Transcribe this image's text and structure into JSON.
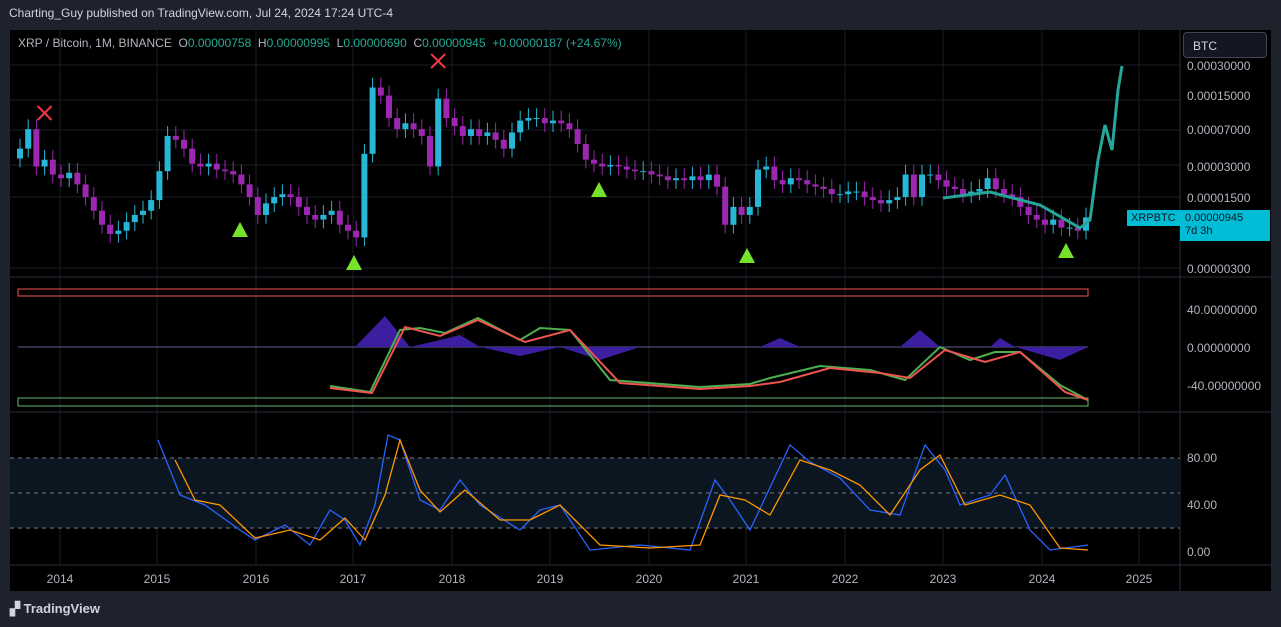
{
  "publisher_line": "Charting_Guy published on TradingView.com, Jul 24, 2024 17:24 UTC-4",
  "legend": {
    "symbol": "XRP / Bitcoin, 1M, BINANCE",
    "o_label": "O",
    "open": "0.00000758",
    "h_label": "H",
    "high": "0.00000995",
    "l_label": "L",
    "low": "0.00000690",
    "c_label": "C",
    "close": "0.00000945",
    "change": "+0.00000187 (+24.67%)"
  },
  "currency_button": "BTC",
  "price_axis": [
    "0.00030000",
    "0.00015000",
    "0.00007000",
    "0.00003000",
    "0.00001500",
    "0.00000300"
  ],
  "price_label": {
    "symbol": "XRPBTC",
    "value": "0.00000945",
    "countdown": "7d 3h"
  },
  "osc_axis": [
    "40.00000000",
    "0.00000000",
    "-40.00000000"
  ],
  "rsi_axis": [
    "80.00",
    "40.00",
    "0.00"
  ],
  "time_axis": [
    "2014",
    "2015",
    "2016",
    "2017",
    "2018",
    "2019",
    "2020",
    "2021",
    "2022",
    "2023",
    "2024",
    "2025"
  ],
  "footer": "TradingView",
  "colors": {
    "up": "#26b7d6",
    "down": "#9c27b0",
    "compare": "#26a69a",
    "sell": "#f23645",
    "buy": "#76e32a"
  },
  "chart_data": {
    "type": "candlestick",
    "start": "2013-09",
    "unit": "satoshi",
    "closes": [
      4500,
      7000,
      3000,
      3500,
      2500,
      2300,
      2600,
      2000,
      1500,
      1100,
      800,
      650,
      700,
      850,
      1000,
      1100,
      1400,
      2700,
      6000,
      5500,
      4500,
      3200,
      3000,
      3200,
      2800,
      2700,
      2500,
      2000,
      1500,
      1000,
      1300,
      1500,
      1600,
      1500,
      1200,
      1000,
      900,
      1000,
      1100,
      800,
      700,
      600,
      4000,
      18000,
      15000,
      9000,
      7000,
      8000,
      7000,
      6000,
      3000,
      14000,
      9000,
      7500,
      6000,
      7000,
      6000,
      6500,
      5500,
      4500,
      6500,
      8500,
      9000,
      9000,
      8000,
      8500,
      8000,
      7000,
      5000,
      3500,
      3200,
      3000,
      3100,
      3000,
      2800,
      2700,
      2700,
      2500,
      2400,
      2200,
      2300,
      2200,
      2400,
      2200,
      2500,
      1900,
      800,
      1200,
      1000,
      1200,
      2800,
      3000,
      2200,
      2000,
      2300,
      2200,
      2000,
      1900,
      1800,
      1600,
      1600,
      1700,
      1700,
      1500,
      1400,
      1300,
      1400,
      1500,
      2500,
      1500,
      2500,
      2500,
      2200,
      1900,
      1800,
      1600,
      1700,
      1800,
      2300,
      1800,
      1600,
      1500,
      1200,
      1000,
      900,
      800,
      900,
      750,
      750,
      700,
      945
    ],
    "sell_signals": [
      "2013-12",
      "2017-12"
    ],
    "buy_signals": [
      "2015-11",
      "2017-01",
      "2019-07",
      "2021-01",
      "2024-03"
    ]
  }
}
